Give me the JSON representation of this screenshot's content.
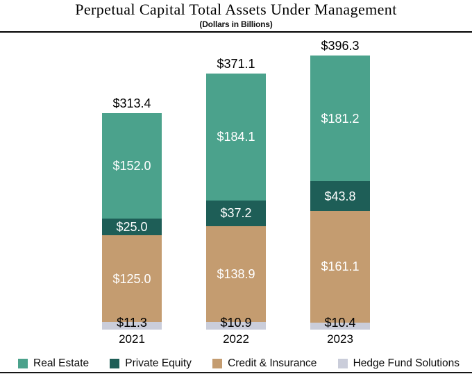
{
  "chart_data": {
    "type": "bar",
    "stacked": true,
    "title": "Perpetual Capital Total Assets Under Management",
    "subtitle": "(Dollars in Billions)",
    "categories": [
      "2021",
      "2022",
      "2023"
    ],
    "series": [
      {
        "name": "Hedge Fund Solutions",
        "color": "#CACDDA",
        "values": [
          11.3,
          10.9,
          10.4
        ]
      },
      {
        "name": "Credit & Insurance",
        "color": "#C49C70",
        "values": [
          125.0,
          138.9,
          161.1
        ]
      },
      {
        "name": "Private Equity",
        "color": "#1E5E57",
        "values": [
          25.0,
          37.2,
          43.8
        ]
      },
      {
        "name": "Real Estate",
        "color": "#4BA28C",
        "values": [
          152.0,
          184.1,
          181.2
        ]
      }
    ],
    "totals": [
      313.4,
      371.1,
      396.3
    ],
    "value_prefix": "$",
    "value_decimals": 1,
    "legend_order": [
      "Real Estate",
      "Private Equity",
      "Credit & Insurance",
      "Hedge Fund Solutions"
    ],
    "legend_position": "bottom",
    "grid": false,
    "axes_hidden": true,
    "total_label_color": "#000000",
    "inside_label_color": "#FFFFFF",
    "outside_label_color": "#000000"
  }
}
